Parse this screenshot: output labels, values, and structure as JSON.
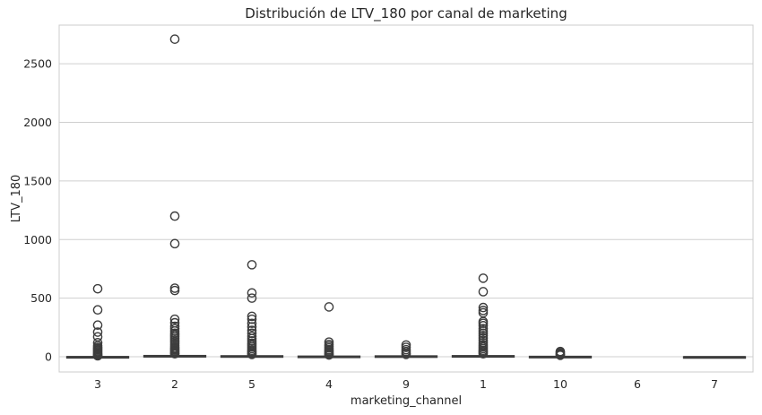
{
  "chart_data": {
    "type": "box",
    "title": "Distribución de LTV_180 por canal de marketing",
    "xlabel": "marketing_channel",
    "ylabel": "LTV_180",
    "ylim": [
      -130,
      2830
    ],
    "yticks": [
      0,
      500,
      1000,
      1500,
      2000,
      2500
    ],
    "grid": "y",
    "categories": [
      "3",
      "2",
      "5",
      "4",
      "9",
      "1",
      "10",
      "6",
      "7"
    ],
    "boxes": [
      {
        "category": "3",
        "whisker_low": 0,
        "q1": 0,
        "median": 0,
        "q3": 1,
        "whisker_high": 3,
        "outliers": [
          580,
          400,
          270,
          210,
          170,
          120,
          95,
          80,
          70,
          60,
          50,
          40,
          30,
          20,
          12,
          8
        ]
      },
      {
        "category": "2",
        "whisker_low": 0,
        "q1": 0,
        "median": 0,
        "q3": 10,
        "whisker_high": 20,
        "outliers": [
          2710,
          1200,
          965,
          585,
          565,
          320,
          290,
          260,
          240,
          220,
          200,
          185,
          170,
          155,
          140,
          125,
          110,
          95,
          80,
          70,
          60,
          50,
          40,
          30,
          25
        ]
      },
      {
        "category": "5",
        "whisker_low": 0,
        "q1": 0,
        "median": 0,
        "q3": 8,
        "whisker_high": 15,
        "outliers": [
          785,
          545,
          500,
          345,
          320,
          285,
          255,
          225,
          200,
          175,
          155,
          135,
          115,
          100,
          85,
          70,
          55,
          45,
          35,
          25,
          20
        ]
      },
      {
        "category": "4",
        "whisker_low": 0,
        "q1": 0,
        "median": 0,
        "q3": 5,
        "whisker_high": 10,
        "outliers": [
          425,
          125,
          105,
          90,
          75,
          60,
          50,
          40,
          30,
          20,
          15
        ]
      },
      {
        "category": "9",
        "whisker_low": 0,
        "q1": 0,
        "median": 0,
        "q3": 7,
        "whisker_high": 12,
        "outliers": [
          100,
          80,
          60,
          45,
          30,
          20
        ]
      },
      {
        "category": "1",
        "whisker_low": 0,
        "q1": 0,
        "median": 0,
        "q3": 9,
        "whisker_high": 18,
        "outliers": [
          670,
          555,
          420,
          395,
          375,
          300,
          285,
          265,
          240,
          220,
          200,
          180,
          160,
          140,
          120,
          100,
          85,
          70,
          55,
          45,
          35,
          25
        ]
      },
      {
        "category": "10",
        "whisker_low": 0,
        "q1": 0,
        "median": 0,
        "q3": 3,
        "whisker_high": 6,
        "outliers": [
          45,
          35,
          25,
          18,
          12
        ]
      },
      {
        "category": "6",
        "whisker_low": null,
        "q1": null,
        "median": null,
        "q3": null,
        "whisker_high": null,
        "outliers": []
      },
      {
        "category": "7",
        "whisker_low": 0,
        "q1": 0,
        "median": 0,
        "q3": 0,
        "whisker_high": 0,
        "outliers": []
      }
    ],
    "colors": {
      "box": "#3d3d3d",
      "grid": "#cfcfcf",
      "frame": "#cccccc"
    }
  }
}
